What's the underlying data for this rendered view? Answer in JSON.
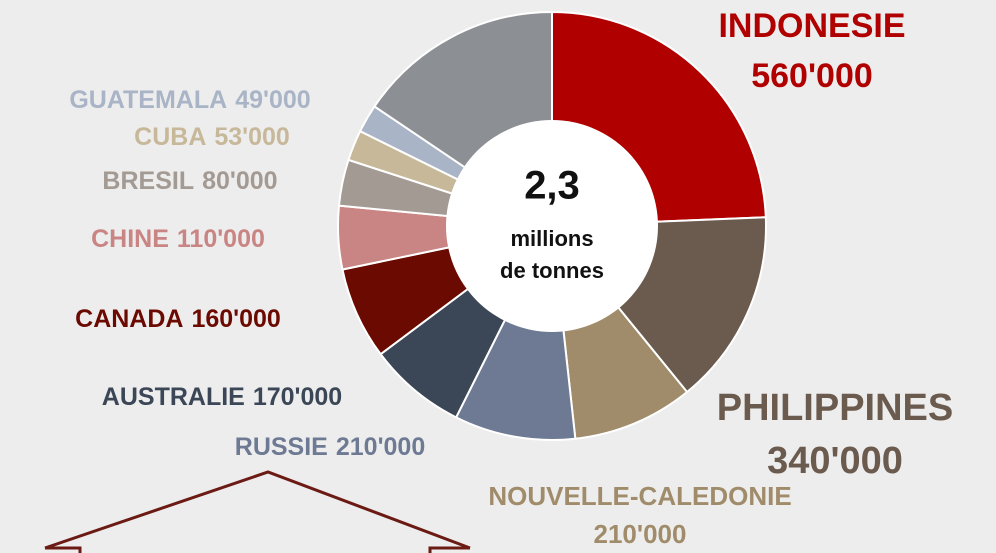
{
  "chart_data": {
    "type": "donut",
    "center_text": [
      "2,3",
      "millions",
      "de tonnes"
    ],
    "categories": [
      "INDONESIE",
      "PHILIPPINES",
      "NOUVELLE-CALEDONIE",
      "RUSSIE",
      "AUSTRALIE",
      "CANADA",
      "CHINE",
      "BRESIL",
      "CUBA",
      "GUATEMALA",
      null
    ],
    "values": [
      560000,
      340000,
      210000,
      210000,
      170000,
      160000,
      110000,
      80000,
      53000,
      49000,
      358000
    ],
    "value_labels": [
      "560'000",
      "340'000",
      "210'000",
      "210'000",
      "170'000",
      "160'000",
      "110'000",
      "80'000",
      "53'000",
      "49'000",
      null
    ],
    "colors": [
      "#b00000",
      "#6b5a4e",
      "#a08c6a",
      "#6e7a93",
      "#3b4656",
      "#6b0a00",
      "#c98583",
      "#a39a93",
      "#c8b89a",
      "#a9b4c6",
      "#8c8f93"
    ]
  }
}
